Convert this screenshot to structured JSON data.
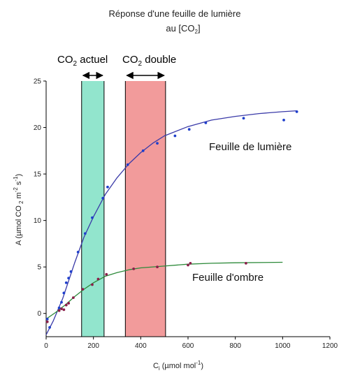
{
  "chart_data": {
    "type": "scatter",
    "title_line1": "Réponse d'une feuille de lumière",
    "title_line2_prefix": "au [CO",
    "title_line2_sub": "2",
    "title_line2_suffix": "]",
    "xlabel_main": "C",
    "xlabel_sub": "i",
    "xlabel_units": " (µmol mol",
    "xlabel_sup": "-1",
    "xlabel_close": ")",
    "ylabel_a": "A (µmol CO",
    "ylabel_sub": " 2",
    "ylabel_b": " m",
    "ylabel_sup1": "-2",
    "ylabel_c": " s",
    "ylabel_sup2": "-1",
    "ylabel_d": ")",
    "xlim": [
      0,
      1200
    ],
    "ylim": [
      -2.5,
      25
    ],
    "xticks": [
      0,
      200,
      400,
      600,
      800,
      1000,
      1200
    ],
    "yticks": [
      0,
      5,
      10,
      15,
      20,
      25
    ],
    "grid": false,
    "bands": [
      {
        "label_prefix": "CO",
        "label_sub": "2",
        "label_suffix": " actuel",
        "x_range": [
          150,
          245
        ],
        "color": "#7fe0c4"
      },
      {
        "label_prefix": "CO",
        "label_sub": "2",
        "label_suffix": " double",
        "x_range": [
          335,
          505
        ],
        "color": "#f08a8a"
      }
    ],
    "series": [
      {
        "name": "Feuille de lumière",
        "color": "#1f3fcc",
        "line_color": "#3a3aa8",
        "points": [
          [
            5,
            -0.6
          ],
          [
            15,
            -1.5
          ],
          [
            55,
            0.6
          ],
          [
            65,
            1.2
          ],
          [
            75,
            2.2
          ],
          [
            85,
            3.3
          ],
          [
            95,
            3.8
          ],
          [
            105,
            4.5
          ],
          [
            135,
            6.6
          ],
          [
            165,
            8.6
          ],
          [
            195,
            10.3
          ],
          [
            240,
            12.4
          ],
          [
            260,
            13.6
          ],
          [
            345,
            16.0
          ],
          [
            410,
            17.5
          ],
          [
            470,
            18.3
          ],
          [
            545,
            19.1
          ],
          [
            605,
            19.8
          ],
          [
            675,
            20.5
          ],
          [
            835,
            21.0
          ],
          [
            1005,
            20.8
          ],
          [
            1060,
            21.7
          ]
        ],
        "fit": [
          [
            0,
            -2.3
          ],
          [
            30,
            -0.8
          ],
          [
            70,
            1.6
          ],
          [
            120,
            5.4
          ],
          [
            160,
            8.2
          ],
          [
            200,
            10.4
          ],
          [
            250,
            12.8
          ],
          [
            300,
            14.6
          ],
          [
            350,
            16.1
          ],
          [
            400,
            17.3
          ],
          [
            450,
            18.3
          ],
          [
            500,
            19.1
          ],
          [
            600,
            20.1
          ],
          [
            700,
            20.8
          ],
          [
            800,
            21.2
          ],
          [
            900,
            21.5
          ],
          [
            1000,
            21.7
          ],
          [
            1060,
            21.8
          ]
        ]
      },
      {
        "name": "Feuille d'ombre",
        "color": "#8a1f4a",
        "line_color": "#2d8a3a",
        "points": [
          [
            5,
            -0.9
          ],
          [
            55,
            0.3
          ],
          [
            65,
            0.5
          ],
          [
            75,
            0.4
          ],
          [
            85,
            0.9
          ],
          [
            95,
            1.1
          ],
          [
            115,
            1.7
          ],
          [
            155,
            2.6
          ],
          [
            195,
            3.1
          ],
          [
            220,
            3.7
          ],
          [
            255,
            4.2
          ],
          [
            370,
            4.8
          ],
          [
            470,
            5.0
          ],
          [
            600,
            5.2
          ],
          [
            610,
            5.4
          ],
          [
            845,
            5.4
          ]
        ],
        "fit": [
          [
            0,
            -0.6
          ],
          [
            40,
            0.1
          ],
          [
            80,
            0.9
          ],
          [
            120,
            1.8
          ],
          [
            160,
            2.6
          ],
          [
            200,
            3.3
          ],
          [
            250,
            4.0
          ],
          [
            300,
            4.4
          ],
          [
            350,
            4.7
          ],
          [
            400,
            4.9
          ],
          [
            500,
            5.1
          ],
          [
            600,
            5.3
          ],
          [
            700,
            5.4
          ],
          [
            800,
            5.45
          ],
          [
            1000,
            5.5
          ]
        ]
      }
    ]
  }
}
